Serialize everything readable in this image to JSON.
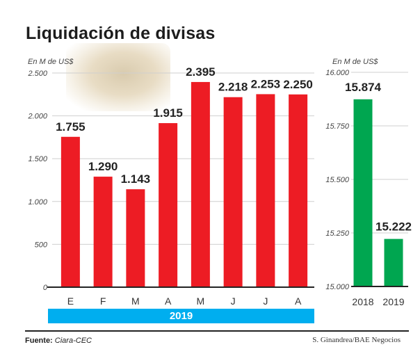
{
  "title": "Liquidación de divisas",
  "footer": {
    "source_label": "Fuente:",
    "source_value": "Ciara-CEC",
    "credit": "S. Ginandrea/BAE Negocios"
  },
  "colors": {
    "monthly_bar": "#ed1c24",
    "annual_bar": "#00a650",
    "year_band": "#00aeef"
  },
  "chart_data": [
    {
      "type": "bar",
      "title": "Liquidación de divisas",
      "ylabel": "En M de US$",
      "xlabel": "2019",
      "categories": [
        "E",
        "F",
        "M",
        "A",
        "M",
        "J",
        "J",
        "A"
      ],
      "values": [
        1755,
        1290,
        1143,
        1915,
        2395,
        2218,
        2253,
        2250
      ],
      "value_labels": [
        "1.755",
        "1.290",
        "1.143",
        "1.915",
        "2.395",
        "2.218",
        "2.253",
        "2.250"
      ],
      "ylim": [
        0,
        2500
      ],
      "yticks": [
        0,
        500,
        1000,
        1500,
        2000,
        2500
      ],
      "ytick_labels": [
        "0",
        "500",
        "1.000",
        "1.500",
        "2.000",
        "2.500"
      ],
      "grid": true,
      "group_label": "2019"
    },
    {
      "type": "bar",
      "ylabel": "En M de US$",
      "categories": [
        "2018",
        "2019"
      ],
      "values": [
        15874,
        15222
      ],
      "value_labels": [
        "15.874",
        "15.222"
      ],
      "ylim": [
        15000,
        16000
      ],
      "yticks": [
        15000,
        15250,
        15500,
        15750,
        16000
      ],
      "ytick_labels": [
        "15.000",
        "15.250",
        "15.500",
        "15.750",
        "16.000"
      ],
      "grid": true
    }
  ]
}
